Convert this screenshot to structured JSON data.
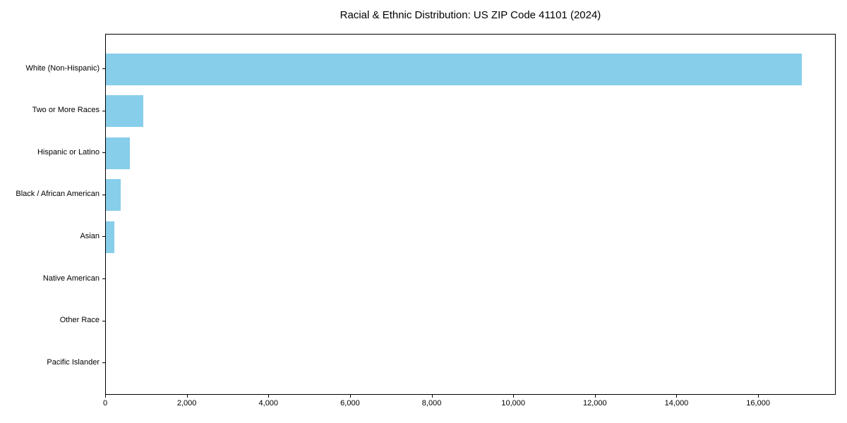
{
  "chart_data": {
    "type": "bar",
    "orientation": "horizontal",
    "title": "Racial & Ethnic Distribution: US ZIP Code 41101 (2024)",
    "categories": [
      "White (Non-Hispanic)",
      "Two or More Races",
      "Hispanic or Latino",
      "Black / African American",
      "Asian",
      "Native American",
      "Other Race",
      "Pacific Islander"
    ],
    "values": [
      17050,
      920,
      590,
      360,
      200,
      0,
      0,
      0
    ],
    "xlabel": "",
    "ylabel": "",
    "xlim": [
      0,
      17900
    ],
    "xticks": [
      0,
      2000,
      4000,
      6000,
      8000,
      10000,
      12000,
      14000,
      16000
    ],
    "xtick_labels": [
      "0",
      "2,000",
      "4,000",
      "6,000",
      "8,000",
      "10,000",
      "12,000",
      "14,000",
      "16,000"
    ],
    "bar_color": "#87CEEB",
    "text_color": "#000000",
    "grid": false,
    "legend": null
  }
}
